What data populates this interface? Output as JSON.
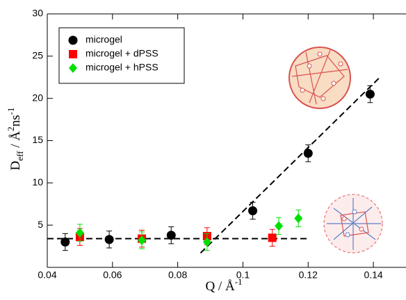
{
  "chart_data": {
    "type": "scatter",
    "xlabel": {
      "main": "Q / Å",
      "sup": "-1"
    },
    "ylabel": {
      "main": "D",
      "sub": "eff",
      "mid": " / Å",
      "sup1": "2",
      "unit": "ns",
      "sup2": "-1"
    },
    "xlim": [
      0.04,
      0.15
    ],
    "ylim": [
      0,
      30
    ],
    "xticks": [
      0.04,
      0.06,
      0.08,
      0.1,
      0.12,
      0.14
    ],
    "yticks": [
      5,
      10,
      15,
      20,
      25,
      30
    ],
    "legend": "upper left",
    "series": [
      {
        "name": "microgel",
        "color": "#000000",
        "marker": "circle",
        "x": [
          0.0455,
          0.059,
          0.078,
          0.103,
          0.12,
          0.139
        ],
        "values": [
          3.0,
          3.3,
          3.8,
          6.7,
          13.5,
          20.5
        ],
        "errors": [
          1.0,
          1.0,
          1.0,
          1.0,
          1.0,
          1.0
        ]
      },
      {
        "name": "microgel + dPSS",
        "color": "#ff0000",
        "marker": "square",
        "x": [
          0.05,
          0.069,
          0.089,
          0.109
        ],
        "values": [
          3.6,
          3.4,
          3.7,
          3.5
        ],
        "errors": [
          1.0,
          1.0,
          1.0,
          1.0
        ]
      },
      {
        "name": "microgel + hPSS",
        "color": "#00e000",
        "marker": "diamond",
        "x": [
          0.05,
          0.069,
          0.089,
          0.111,
          0.117
        ],
        "values": [
          4.1,
          3.2,
          3.0,
          4.9,
          5.8
        ],
        "errors": [
          1.0,
          1.0,
          1.0,
          1.0,
          1.0
        ]
      }
    ],
    "fits": [
      {
        "x": [
          0.04,
          0.12
        ],
        "y": [
          3.4,
          3.4
        ]
      },
      {
        "x": [
          0.087,
          0.142
        ],
        "y": [
          1.7,
          22.5
        ]
      }
    ]
  }
}
